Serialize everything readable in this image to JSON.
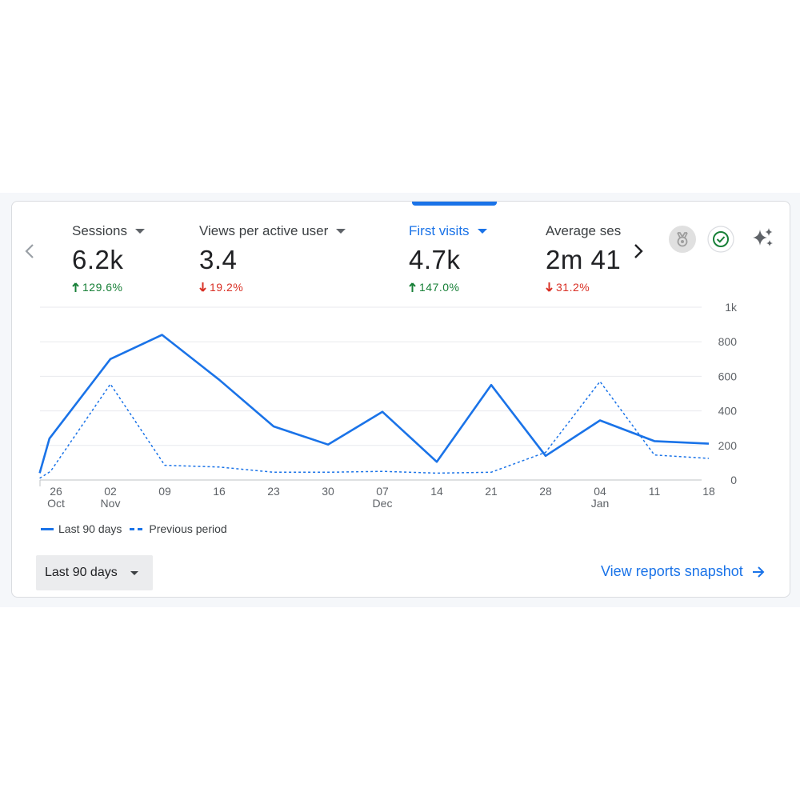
{
  "metrics": [
    {
      "label": "Sessions",
      "value": "6.2k",
      "change": "129.6%",
      "direction": "up"
    },
    {
      "label": "Views per active user",
      "value": "3.4",
      "change": "19.2%",
      "direction": "down"
    },
    {
      "label": "First visits",
      "value": "4.7k",
      "change": "147.0%",
      "direction": "up"
    },
    {
      "label": "Average ses",
      "value": "2m 41",
      "change": "31.2%",
      "direction": "down"
    }
  ],
  "icons": {
    "prev": "chevron-left-icon",
    "next": "chevron-right-icon",
    "insights": "medal-icon",
    "status": "check-circle-icon",
    "ai": "sparkle-icon"
  },
  "colors": {
    "accent": "#1a73e8",
    "up": "#188038",
    "down": "#d93025"
  },
  "chart_data": {
    "type": "line",
    "x": [
      "26 Oct",
      "02 Nov",
      "09",
      "16",
      "23",
      "30",
      "07 Dec",
      "14",
      "21",
      "28",
      "04 Jan",
      "11",
      "18"
    ],
    "x_ticks": [
      {
        "top": "26",
        "bottom": "Oct"
      },
      {
        "top": "02",
        "bottom": "Nov"
      },
      {
        "top": "09",
        "bottom": ""
      },
      {
        "top": "16",
        "bottom": ""
      },
      {
        "top": "23",
        "bottom": ""
      },
      {
        "top": "30",
        "bottom": ""
      },
      {
        "top": "07",
        "bottom": "Dec"
      },
      {
        "top": "14",
        "bottom": ""
      },
      {
        "top": "21",
        "bottom": ""
      },
      {
        "top": "28",
        "bottom": ""
      },
      {
        "top": "04",
        "bottom": "Jan"
      },
      {
        "top": "11",
        "bottom": ""
      },
      {
        "top": "18",
        "bottom": ""
      }
    ],
    "y_ticks": [
      "0",
      "200",
      "400",
      "600",
      "800",
      "1k"
    ],
    "ylim": [
      0,
      1000
    ],
    "grid": true,
    "series": [
      {
        "name": "Last 90 days",
        "style": "solid",
        "points": [
          [
            -0.3,
            40
          ],
          [
            -0.12,
            240
          ],
          [
            1,
            700
          ],
          [
            1.95,
            840
          ],
          [
            3,
            580
          ],
          [
            4,
            310
          ],
          [
            5,
            205
          ],
          [
            6,
            395
          ],
          [
            7,
            105
          ],
          [
            8,
            550
          ],
          [
            9,
            140
          ],
          [
            10,
            345
          ],
          [
            11,
            225
          ],
          [
            12,
            210
          ]
        ]
      },
      {
        "name": "Previous period",
        "style": "dashed",
        "points": [
          [
            -0.3,
            10
          ],
          [
            -0.1,
            50
          ],
          [
            1,
            555
          ],
          [
            2,
            85
          ],
          [
            3,
            75
          ],
          [
            4,
            45
          ],
          [
            5,
            45
          ],
          [
            6,
            50
          ],
          [
            7,
            40
          ],
          [
            8,
            45
          ],
          [
            9,
            160
          ],
          [
            10,
            570
          ],
          [
            11,
            145
          ],
          [
            12,
            125
          ]
        ]
      }
    ]
  },
  "legend": {
    "current": "Last 90 days",
    "previous": "Previous period"
  },
  "date_range": {
    "label": "Last 90 days"
  },
  "snapshot_link": {
    "label": "View reports snapshot"
  }
}
